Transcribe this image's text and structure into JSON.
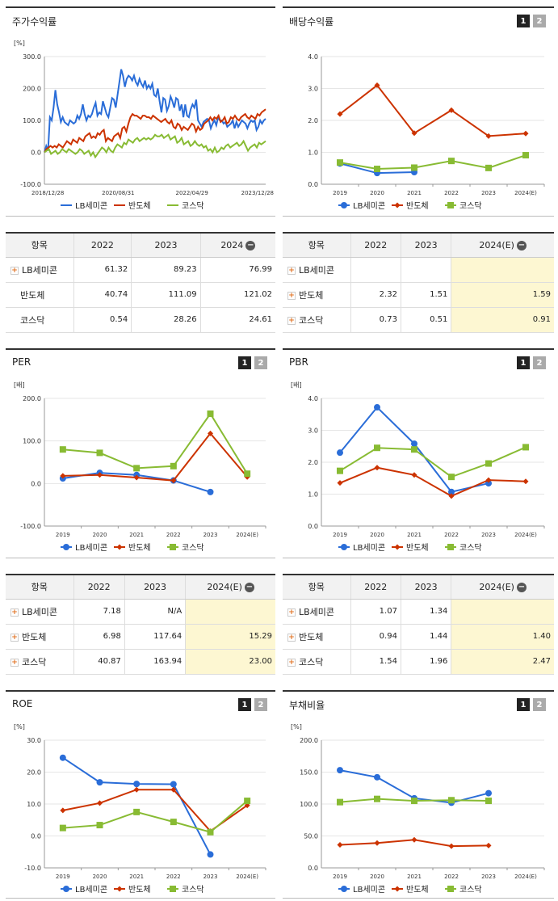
{
  "panels": [
    {
      "id": "stock-return",
      "title": "주가수익률",
      "has_toggle": false,
      "chart_data": {
        "type": "line",
        "unit_label": "[%]",
        "yticks": [
          "300.0",
          "200.0",
          "100.0",
          "0.0",
          "-100.0"
        ],
        "ylim": [
          -100,
          300
        ],
        "xtick_labels": [
          "2018/12/28",
          "2020/08/31",
          "2022/04/29",
          "2023/12/28"
        ],
        "series": [
          {
            "name": "LB세미콘",
            "color": "#2a6dd8",
            "marker": "none",
            "values": [
              0,
              20,
              5,
              110,
              100,
              140,
              195,
              150,
              125,
              95,
              110,
              95,
              90,
              85,
              100,
              95,
              90,
              95,
              115,
              105,
              120,
              150,
              120,
              100,
              115,
              110,
              120,
              140,
              155,
              115,
              125,
              120,
              160,
              140,
              120,
              110,
              140,
              170,
              165,
              140,
              180,
              220,
              260,
              240,
              205,
              230,
              240,
              235,
              225,
              240,
              220,
              210,
              230,
              215,
              205,
              225,
              200,
              210,
              200,
              215,
              180,
              175,
              200,
              160,
              125,
              170,
              165,
              130,
              145,
              175,
              160,
              140,
              170,
              165,
              130,
              150,
              110,
              150,
              115,
              110,
              135,
              150,
              140,
              165,
              100,
              90,
              80,
              95,
              100,
              105,
              100,
              75,
              90,
              100,
              85,
              110,
              100,
              100,
              90,
              95,
              80,
              85,
              90,
              100,
              75,
              95,
              80,
              90,
              100,
              95,
              90,
              75,
              90,
              100,
              95,
              100,
              70,
              80,
              100,
              90,
              100,
              105
            ]
          },
          {
            "name": "반도체",
            "color": "#cc3300",
            "marker": "none",
            "values": [
              0,
              10,
              15,
              20,
              15,
              20,
              15,
              25,
              20,
              15,
              25,
              35,
              30,
              25,
              40,
              35,
              30,
              45,
              40,
              35,
              50,
              55,
              60,
              45,
              50,
              45,
              60,
              55,
              65,
              70,
              35,
              45,
              40,
              35,
              50,
              55,
              60,
              45,
              75,
              80,
              65,
              90,
              110,
              120,
              115,
              115,
              110,
              105,
              115,
              115,
              110,
              110,
              105,
              115,
              110,
              105,
              100,
              95,
              100,
              105,
              95,
              90,
              100,
              80,
              75,
              90,
              85,
              70,
              80,
              75,
              70,
              80,
              90,
              85,
              65,
              80,
              70,
              75,
              90,
              95,
              100,
              110,
              100,
              110,
              105,
              115,
              95,
              100,
              110,
              90,
              95,
              110,
              105,
              115,
              105,
              100,
              110,
              115,
              120,
              110,
              105,
              115,
              110,
              105,
              120,
              115,
              125,
              130,
              135
            ]
          },
          {
            "name": "코스닥",
            "color": "#88bb33",
            "marker": "none",
            "values": [
              0,
              5,
              10,
              -5,
              0,
              5,
              -5,
              0,
              10,
              5,
              0,
              10,
              5,
              0,
              -5,
              0,
              10,
              5,
              -5,
              0,
              5,
              -10,
              0,
              -15,
              -5,
              5,
              15,
              10,
              0,
              15,
              5,
              0,
              15,
              25,
              20,
              15,
              30,
              25,
              40,
              35,
              30,
              40,
              45,
              35,
              40,
              45,
              40,
              45,
              40,
              45,
              55,
              50,
              50,
              55,
              45,
              50,
              55,
              40,
              45,
              50,
              30,
              35,
              45,
              25,
              30,
              35,
              20,
              25,
              35,
              25,
              20,
              25,
              15,
              20,
              5,
              10,
              0,
              15,
              0,
              5,
              15,
              10,
              20,
              25,
              15,
              20,
              25,
              30,
              20,
              25,
              35,
              20,
              5,
              15,
              20,
              25,
              15,
              30,
              25,
              30,
              35
            ]
          }
        ]
      }
    },
    {
      "id": "dividend",
      "title": "배당수익률",
      "has_toggle": true,
      "chart_data": {
        "type": "line",
        "unit_label": "",
        "yticks": [
          "4.0",
          "3.0",
          "2.0",
          "1.0",
          "0.0"
        ],
        "ylim": [
          0,
          4
        ],
        "categories": [
          "2019",
          "2020",
          "2021",
          "2022",
          "2023",
          "2024(E)"
        ],
        "series": [
          {
            "name": "LB세미콘",
            "color": "#2a6dd8",
            "marker": "circle",
            "values": [
              0.65,
              0.35,
              0.38,
              null,
              null,
              null
            ]
          },
          {
            "name": "반도체",
            "color": "#cc3300",
            "marker": "diamond",
            "values": [
              2.2,
              3.1,
              1.6,
              2.32,
              1.51,
              1.59
            ]
          },
          {
            "name": "코스닥",
            "color": "#88bb33",
            "marker": "square",
            "values": [
              0.68,
              0.48,
              0.52,
              0.73,
              0.51,
              0.91
            ]
          }
        ]
      }
    },
    {
      "id": "per",
      "title": "PER",
      "has_toggle": true,
      "chart_data": {
        "type": "line",
        "unit_label": "[배]",
        "yticks": [
          "200.0",
          "100.0",
          "0.0",
          "-100.0"
        ],
        "ylim": [
          -100,
          200
        ],
        "categories": [
          "2019",
          "2020",
          "2021",
          "2022",
          "2023",
          "2024(E)"
        ],
        "series": [
          {
            "name": "LB세미콘",
            "color": "#2a6dd8",
            "marker": "circle",
            "values": [
              12,
              25,
              20,
              7.18,
              -20,
              null
            ]
          },
          {
            "name": "반도체",
            "color": "#cc3300",
            "marker": "diamond",
            "values": [
              18,
              20,
              14,
              6.98,
              117.64,
              15.29
            ]
          },
          {
            "name": "코스닥",
            "color": "#88bb33",
            "marker": "square",
            "values": [
              80,
              72,
              36,
              40.87,
              163.94,
              23.0
            ]
          }
        ]
      }
    },
    {
      "id": "pbr",
      "title": "PBR",
      "has_toggle": true,
      "chart_data": {
        "type": "line",
        "unit_label": "[배]",
        "yticks": [
          "4.0",
          "3.0",
          "2.0",
          "1.0",
          "0.0"
        ],
        "ylim": [
          0,
          4
        ],
        "categories": [
          "2019",
          "2020",
          "2021",
          "2022",
          "2023",
          "2024(E)"
        ],
        "series": [
          {
            "name": "LB세미콘",
            "color": "#2a6dd8",
            "marker": "circle",
            "values": [
              2.3,
              3.72,
              2.58,
              1.07,
              1.34,
              null
            ]
          },
          {
            "name": "반도체",
            "color": "#cc3300",
            "marker": "diamond",
            "values": [
              1.35,
              1.83,
              1.6,
              0.94,
              1.44,
              1.4
            ]
          },
          {
            "name": "코스닥",
            "color": "#88bb33",
            "marker": "square",
            "values": [
              1.73,
              2.45,
              2.4,
              1.54,
              1.96,
              2.47
            ]
          }
        ]
      }
    },
    {
      "id": "roe",
      "title": "ROE",
      "has_toggle": true,
      "chart_data": {
        "type": "line",
        "unit_label": "[%]",
        "yticks": [
          "30.0",
          "20.0",
          "10.0",
          "0.0",
          "-10.0"
        ],
        "ylim": [
          -10,
          30
        ],
        "categories": [
          "2019",
          "2020",
          "2021",
          "2022",
          "2023",
          "2024(E)"
        ],
        "series": [
          {
            "name": "LB세미콘",
            "color": "#2a6dd8",
            "marker": "circle",
            "values": [
              24.5,
              16.8,
              16.3,
              16.2,
              -5.8,
              null
            ]
          },
          {
            "name": "반도체",
            "color": "#cc3300",
            "marker": "diamond",
            "values": [
              8.0,
              10.3,
              14.5,
              14.5,
              1.5,
              9.6
            ]
          },
          {
            "name": "코스닥",
            "color": "#88bb33",
            "marker": "square",
            "values": [
              2.5,
              3.4,
              7.5,
              4.4,
              1.2,
              11.0
            ]
          }
        ]
      }
    },
    {
      "id": "debt",
      "title": "부채비율",
      "has_toggle": true,
      "chart_data": {
        "type": "line",
        "unit_label": "[%]",
        "yticks": [
          "200.0",
          "150.0",
          "100.0",
          "50.0",
          "0.0"
        ],
        "ylim": [
          0,
          200
        ],
        "categories": [
          "2019",
          "2020",
          "2021",
          "2022",
          "2023",
          "2024(E)"
        ],
        "series": [
          {
            "name": "LB세미콘",
            "color": "#2a6dd8",
            "marker": "circle",
            "values": [
              153,
              142,
              109,
              102,
              117,
              null
            ]
          },
          {
            "name": "반도체",
            "color": "#cc3300",
            "marker": "diamond",
            "values": [
              36,
              39,
              44,
              34,
              35,
              null
            ]
          },
          {
            "name": "코스닥",
            "color": "#88bb33",
            "marker": "square",
            "values": [
              103,
              108,
              105,
              106,
              105,
              null
            ]
          }
        ]
      }
    }
  ],
  "toggle_labels": [
    "1",
    "2"
  ],
  "tables": [
    {
      "id": "stock-return-table",
      "header": [
        "항목",
        "2022",
        "2023",
        "2024"
      ],
      "has_plus": false,
      "highlight_last": false,
      "rows": [
        {
          "name": "LB세미콘",
          "values": [
            "61.32",
            "89.23",
            "76.99"
          ],
          "plus": true
        },
        {
          "name": "반도체",
          "values": [
            "40.74",
            "111.09",
            "121.02"
          ],
          "plus": false
        },
        {
          "name": "코스닥",
          "values": [
            "0.54",
            "28.26",
            "24.61"
          ],
          "plus": false
        }
      ]
    },
    {
      "id": "dividend-table",
      "header": [
        "항목",
        "2022",
        "2023",
        "2024(E)"
      ],
      "highlight_last": true,
      "rows": [
        {
          "name": "LB세미콘",
          "values": [
            "",
            "",
            ""
          ],
          "plus": true
        },
        {
          "name": "반도체",
          "values": [
            "2.32",
            "1.51",
            "1.59"
          ],
          "plus": true
        },
        {
          "name": "코스닥",
          "values": [
            "0.73",
            "0.51",
            "0.91"
          ],
          "plus": true
        }
      ]
    },
    {
      "id": "per-table",
      "header": [
        "항목",
        "2022",
        "2023",
        "2024(E)"
      ],
      "highlight_last": true,
      "rows": [
        {
          "name": "LB세미콘",
          "values": [
            "7.18",
            "N/A",
            ""
          ],
          "plus": true
        },
        {
          "name": "반도체",
          "values": [
            "6.98",
            "117.64",
            "15.29"
          ],
          "plus": true
        },
        {
          "name": "코스닥",
          "values": [
            "40.87",
            "163.94",
            "23.00"
          ],
          "plus": true
        }
      ]
    },
    {
      "id": "pbr-table",
      "header": [
        "항목",
        "2022",
        "2023",
        "2024(E)"
      ],
      "highlight_last": true,
      "rows": [
        {
          "name": "LB세미콘",
          "values": [
            "1.07",
            "1.34",
            ""
          ],
          "plus": true
        },
        {
          "name": "반도체",
          "values": [
            "0.94",
            "1.44",
            "1.40"
          ],
          "plus": true
        },
        {
          "name": "코스닥",
          "values": [
            "1.54",
            "1.96",
            "2.47"
          ],
          "plus": true
        }
      ]
    }
  ]
}
